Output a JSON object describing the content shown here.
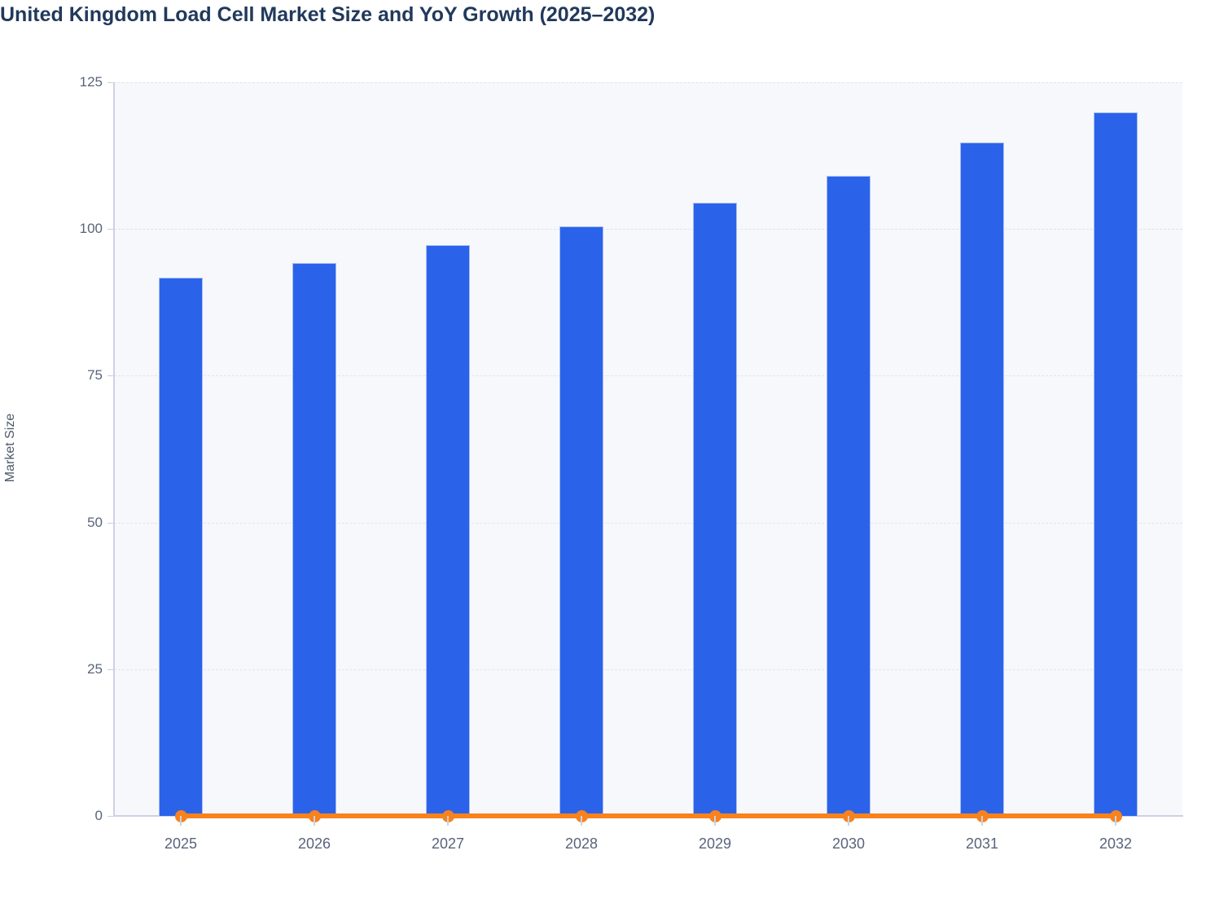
{
  "title": "United Kingdom Load Cell Market Size and YoY Growth (2025–2032)",
  "chart_data": {
    "type": "bar",
    "title": "United Kingdom Load Cell Market Size and YoY Growth (2025–2032)",
    "categories": [
      "2025",
      "2026",
      "2027",
      "2028",
      "2029",
      "2030",
      "2031",
      "2032"
    ],
    "series": [
      {
        "name": "Market Size",
        "type": "bar",
        "color": "#2a63ea",
        "values": [
          91.7,
          94.2,
          97.3,
          100.4,
          104.4,
          109.0,
          114.7,
          119.9
        ]
      },
      {
        "name": "YoY Growth",
        "type": "line",
        "color": "#f8821c",
        "values": [
          0,
          0,
          0,
          0,
          0,
          0,
          0,
          0
        ]
      }
    ],
    "xlabel": "",
    "ylabel": "Market Size",
    "ylim": [
      0,
      125
    ],
    "yticks": [
      0,
      25,
      50,
      75,
      100,
      125
    ],
    "grid": true,
    "gridline_style": "dashed",
    "legend": false,
    "legend_position": "none",
    "plot_background": "#f7f8fb"
  },
  "colors": {
    "bar": "#2a63ea",
    "bar_border": "#a8bdf3",
    "line": "#f8821c",
    "title_text": "#21395c",
    "axis_text": "#59647a",
    "axis_line": "#ccd2e4",
    "gridline": "#e1e4eb",
    "plot_background": "#f7f8fb",
    "page_background": "#ffffff"
  }
}
